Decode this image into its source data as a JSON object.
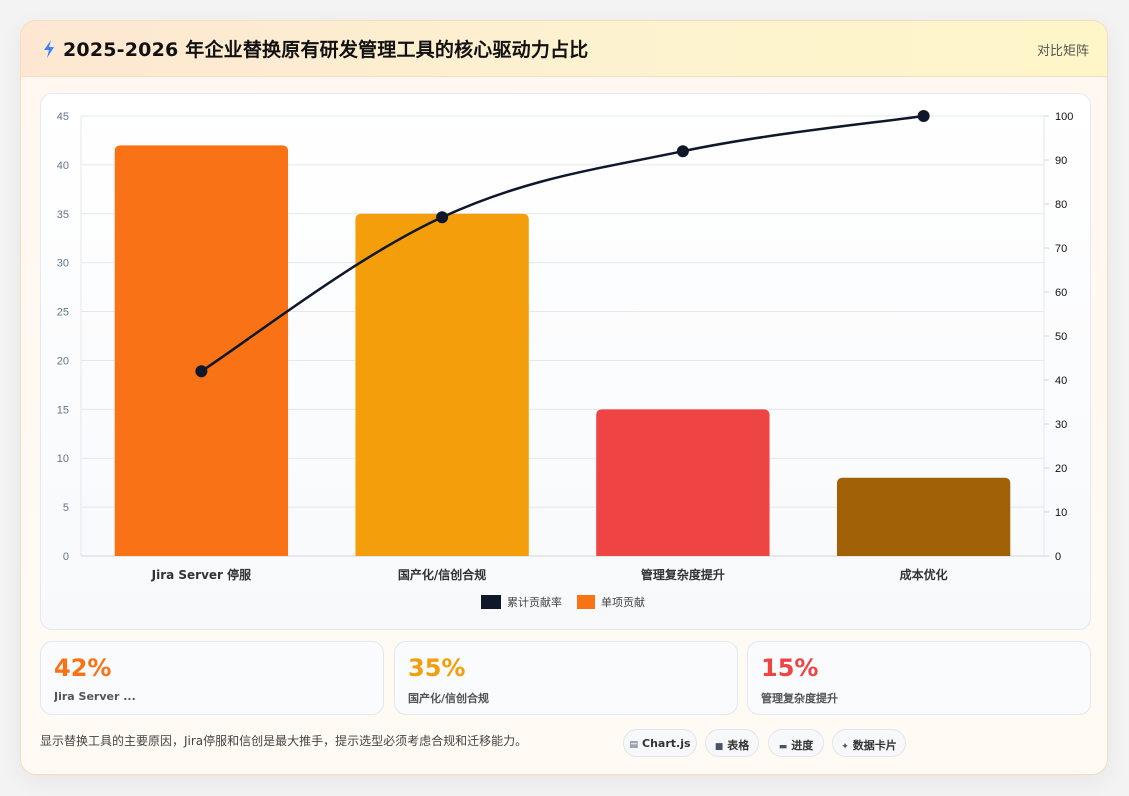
{
  "header": {
    "title": "2025-2026 年企业替换原有研发管理工具的核心驱动力占比",
    "compare_label": "对比矩阵",
    "icon": "lightning-icon"
  },
  "chart_data": {
    "type": "bar",
    "title": "",
    "categories": [
      "Jira Server 停服",
      "国产化/信创合规",
      "管理复杂度提升",
      "成本优化"
    ],
    "series": [
      {
        "name": "单项贡献",
        "type": "bar",
        "axis": "left",
        "values": [
          42,
          35,
          15,
          8
        ],
        "colors": [
          "#f97316",
          "#f59e0b",
          "#ef4444",
          "#a16207"
        ]
      },
      {
        "name": "累计贡献率",
        "type": "line",
        "axis": "right",
        "values": [
          42,
          77,
          92,
          100
        ],
        "color": "#0f172a"
      }
    ],
    "y_left": {
      "min": 0,
      "max": 45,
      "ticks": [
        0,
        5,
        10,
        15,
        20,
        25,
        30,
        35,
        40,
        45
      ]
    },
    "y_right": {
      "min": 0,
      "max": 100,
      "ticks": [
        0,
        10,
        20,
        30,
        40,
        50,
        60,
        70,
        80,
        90,
        100
      ]
    },
    "grid": true,
    "legend_position": "bottom",
    "legend": [
      {
        "label": "累计贡献率",
        "color": "#0f172a"
      },
      {
        "label": "单项贡献",
        "color": "#f97316"
      }
    ]
  },
  "stats": [
    {
      "value": "42%",
      "label": "Jira Server ...",
      "color": "#f97316"
    },
    {
      "value": "35%",
      "label": "国产化/信创合规",
      "color": "#f59e0b"
    },
    {
      "value": "15%",
      "label": "管理复杂度提升",
      "color": "#ef4444"
    }
  ],
  "footer": {
    "note": "显示替换工具的主要原因，Jira停服和信创是最大推手，提示选型必须考虑合规和迁移能力。",
    "buttons": [
      {
        "label": "Chart.js",
        "icon": "chart-icon"
      },
      {
        "label": "表格",
        "icon": "table-icon"
      },
      {
        "label": "进度",
        "icon": "progress-icon"
      },
      {
        "label": "数据卡片",
        "icon": "card-icon"
      }
    ]
  }
}
